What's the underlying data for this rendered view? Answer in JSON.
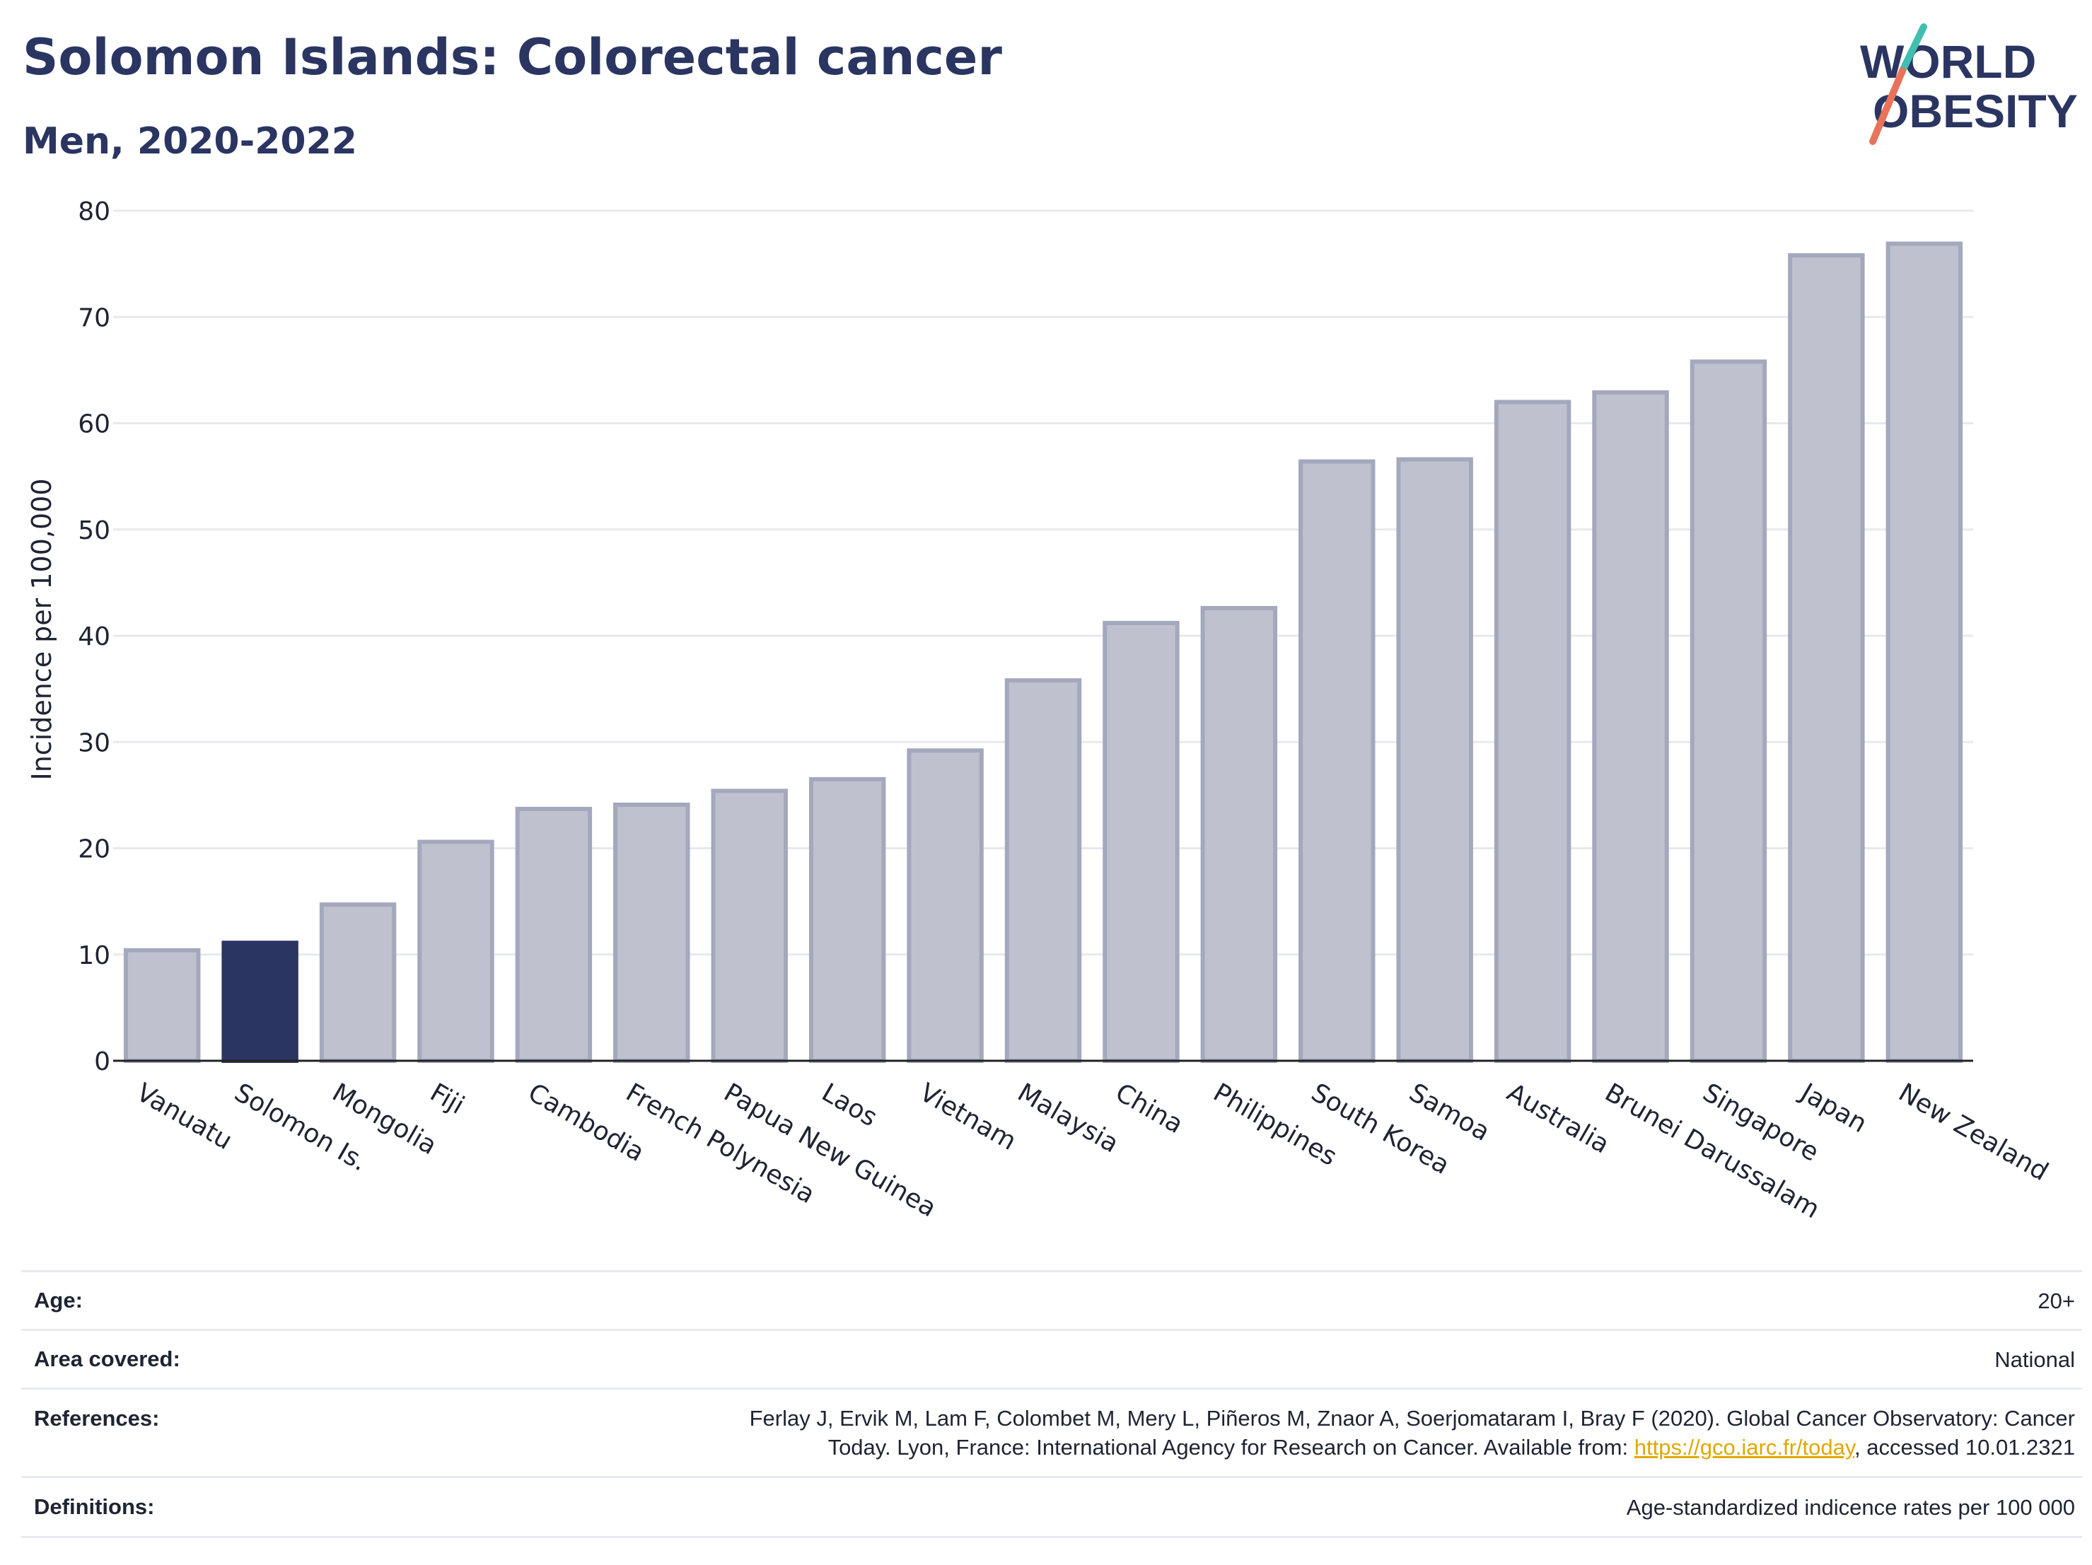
{
  "header": {
    "title": "Solomon Islands: Colorectal cancer",
    "subtitle": "Men, 2020-2022"
  },
  "logo": {
    "line1": "WORLD",
    "line2": "OBESITY"
  },
  "colors": {
    "highlight": "#2b3561",
    "bar_fill": "#bfc2ce",
    "bar_stroke": "#a3a8bd",
    "grid": "#e8e9ee",
    "logo_teal": "#3fbfb0",
    "logo_coral": "#e8735a"
  },
  "chart_data": {
    "type": "bar",
    "ylabel": "Incidence per 100,000",
    "ylim": [
      0,
      80
    ],
    "yticks": [
      0,
      10,
      20,
      30,
      40,
      50,
      60,
      70,
      80
    ],
    "categories": [
      "Vanuatu",
      "Solomon Is.",
      "Mongolia",
      "Fiji",
      "Cambodia",
      "French Polynesia",
      "Papua New Guinea",
      "Laos",
      "Vietnam",
      "Malaysia",
      "China",
      "Philippines",
      "South Korea",
      "Samoa",
      "Australia",
      "Brunei Darussalam",
      "Singapore",
      "Japan",
      "New Zealand"
    ],
    "values": [
      10.4,
      11.1,
      14.7,
      20.6,
      23.7,
      24.1,
      25.4,
      26.5,
      29.2,
      35.8,
      41.2,
      42.6,
      56.4,
      56.6,
      62.0,
      62.9,
      65.8,
      75.8,
      76.9
    ],
    "highlight": "Solomon Is.",
    "grid": true
  },
  "info": {
    "age": {
      "label": "Age:",
      "value": "20+"
    },
    "area": {
      "label": "Area covered:",
      "value": "National"
    },
    "references": {
      "label": "References:",
      "line1": "Ferlay J, Ervik M, Lam F, Colombet M, Mery L, Piñeros M, Znaor A, Soerjomataram I, Bray F (2020). Global Cancer Observatory: Cancer",
      "line2_pre": "Today. Lyon, France: International Agency for Research on Cancer. Available from: ",
      "link": "https://gco.iarc.fr/today",
      "line2_post": ", accessed 10.01.2321"
    },
    "definitions": {
      "label": "Definitions:",
      "value": "Age-standardized indicence rates per 100 000"
    }
  }
}
